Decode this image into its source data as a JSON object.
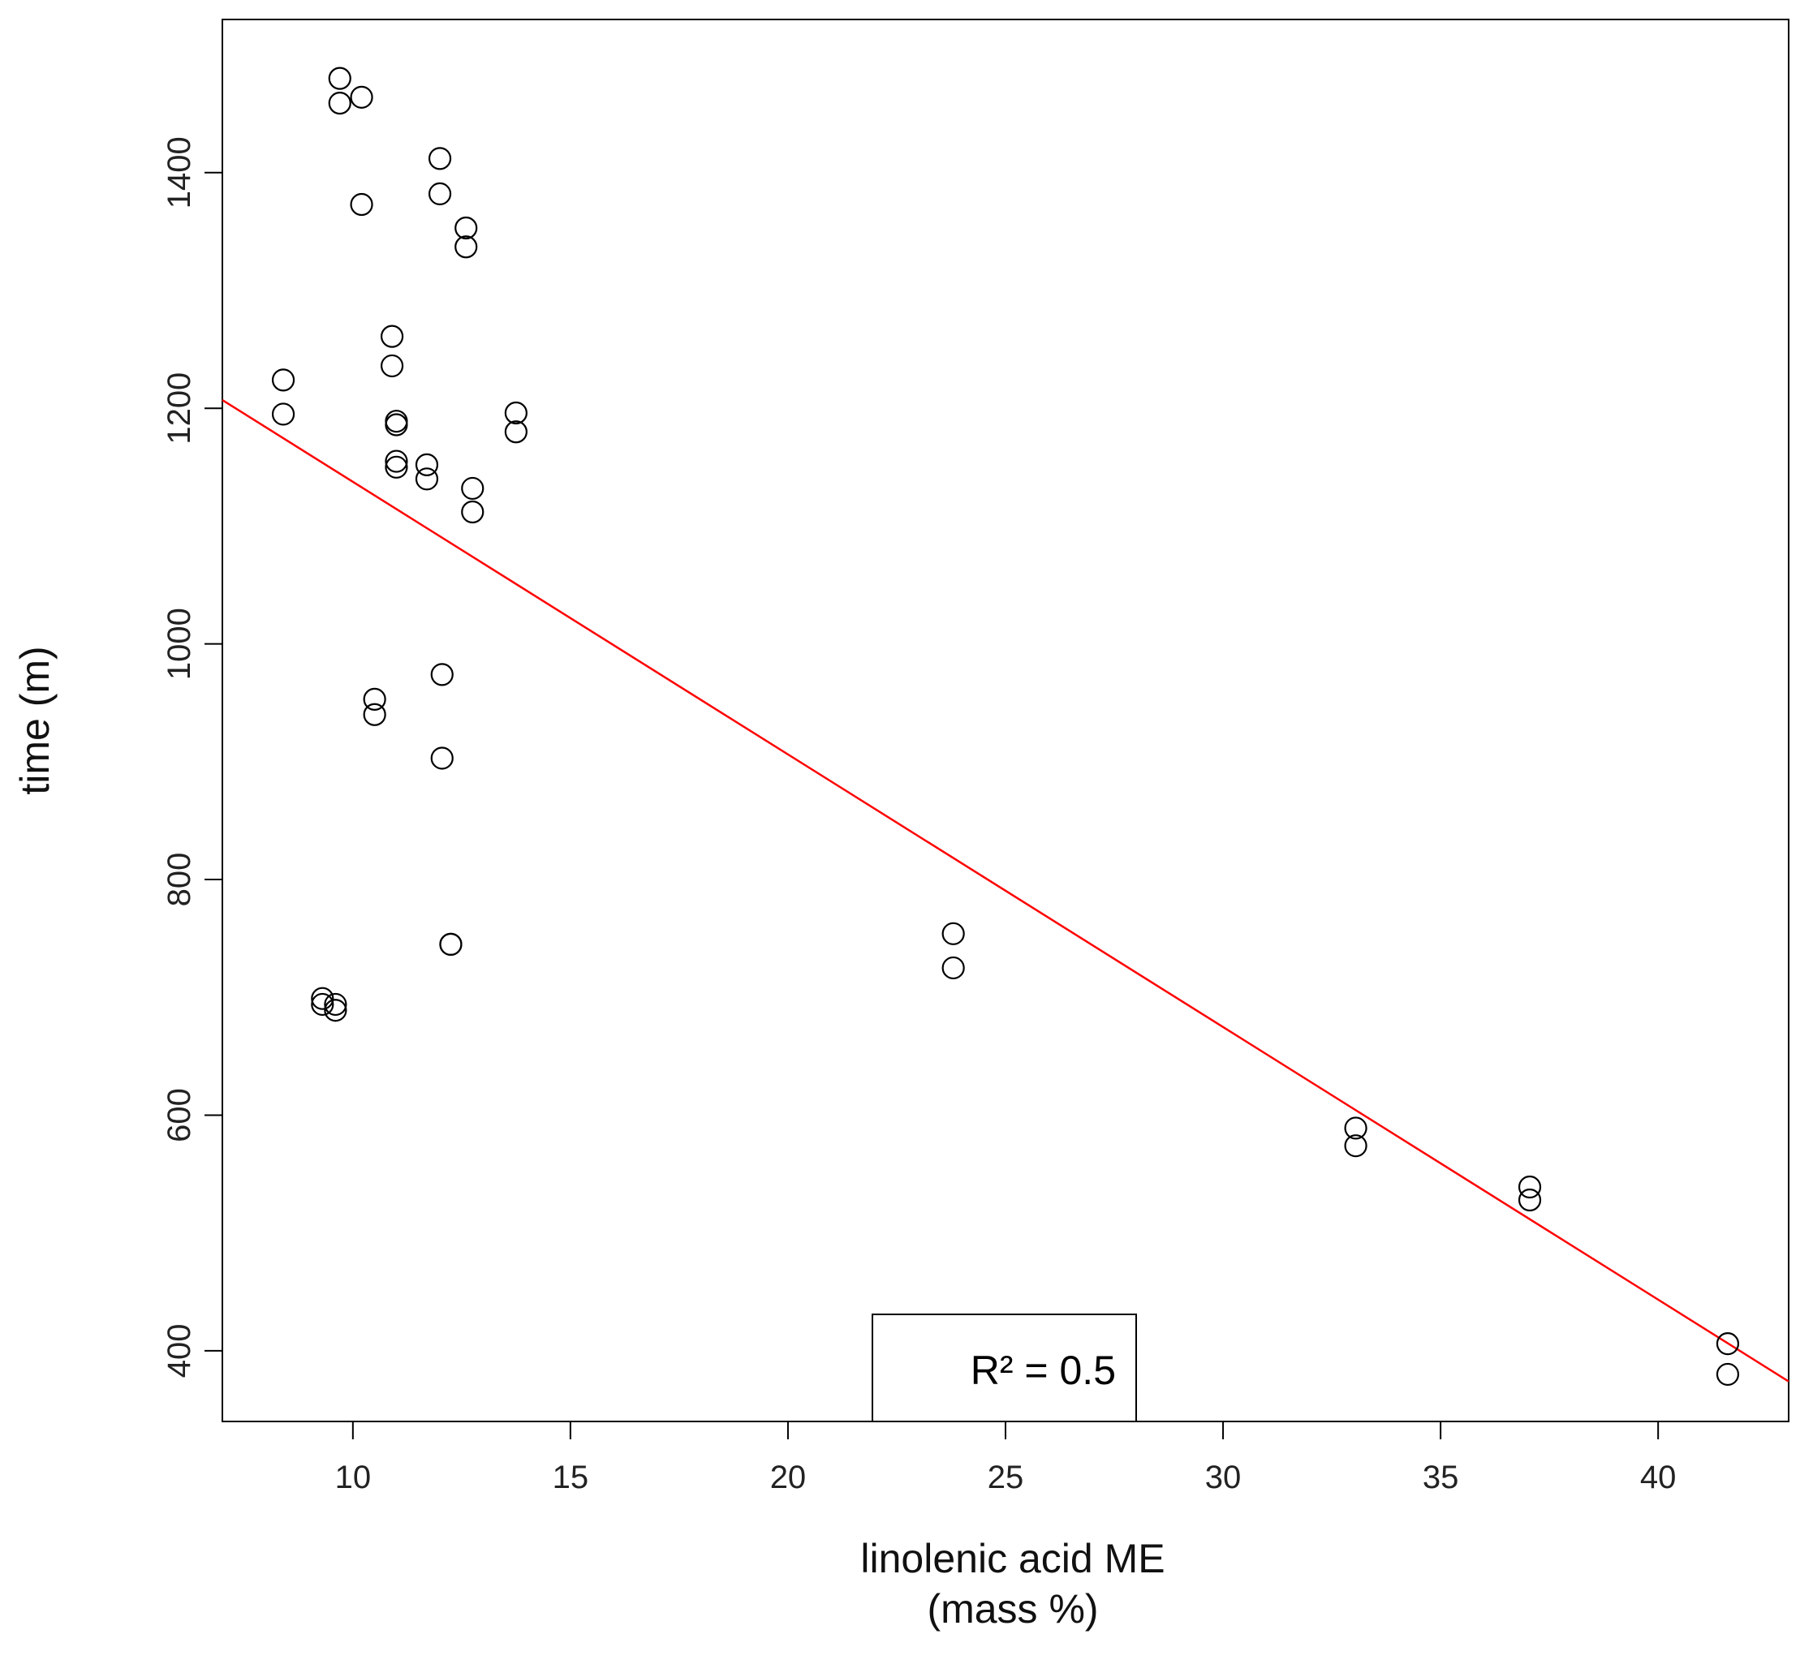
{
  "chart_data": {
    "type": "scatter",
    "title": "",
    "xlabel": "linolenic acid ME",
    "xlabel_line2": "(mass %)",
    "ylabel": "time (m)",
    "xlim": [
      7,
      43
    ],
    "ylim": [
      340,
      1530
    ],
    "xticks": [
      10,
      15,
      20,
      25,
      30,
      35,
      40
    ],
    "yticks": [
      400,
      600,
      800,
      1000,
      1200,
      1400
    ],
    "grid": false,
    "series": [
      {
        "name": "observations",
        "marker": "open-circle",
        "color": "#000000",
        "points": [
          {
            "x": 8.4,
            "y": 1224
          },
          {
            "x": 8.4,
            "y": 1195
          },
          {
            "x": 9.3,
            "y": 699
          },
          {
            "x": 9.3,
            "y": 694
          },
          {
            "x": 9.6,
            "y": 694
          },
          {
            "x": 9.6,
            "y": 689
          },
          {
            "x": 9.7,
            "y": 1480
          },
          {
            "x": 9.7,
            "y": 1459
          },
          {
            "x": 10.2,
            "y": 1464
          },
          {
            "x": 10.2,
            "y": 1373
          },
          {
            "x": 10.5,
            "y": 953
          },
          {
            "x": 10.5,
            "y": 940
          },
          {
            "x": 10.9,
            "y": 1261
          },
          {
            "x": 10.9,
            "y": 1236
          },
          {
            "x": 11.0,
            "y": 1189
          },
          {
            "x": 11.0,
            "y": 1186
          },
          {
            "x": 11.0,
            "y": 1155
          },
          {
            "x": 11.0,
            "y": 1150
          },
          {
            "x": 11.7,
            "y": 1152
          },
          {
            "x": 11.7,
            "y": 1140
          },
          {
            "x": 12.0,
            "y": 1412
          },
          {
            "x": 12.0,
            "y": 1382
          },
          {
            "x": 12.05,
            "y": 974
          },
          {
            "x": 12.05,
            "y": 903
          },
          {
            "x": 12.25,
            "y": 745
          },
          {
            "x": 12.25,
            "y": 745
          },
          {
            "x": 12.6,
            "y": 1353
          },
          {
            "x": 12.6,
            "y": 1337
          },
          {
            "x": 12.75,
            "y": 1132
          },
          {
            "x": 12.75,
            "y": 1112
          },
          {
            "x": 13.75,
            "y": 1196
          },
          {
            "x": 13.75,
            "y": 1180
          },
          {
            "x": 23.8,
            "y": 754
          },
          {
            "x": 23.8,
            "y": 725
          },
          {
            "x": 33.05,
            "y": 589
          },
          {
            "x": 33.05,
            "y": 574
          },
          {
            "x": 37.05,
            "y": 539
          },
          {
            "x": 37.05,
            "y": 528
          },
          {
            "x": 41.6,
            "y": 406
          },
          {
            "x": 41.6,
            "y": 380
          }
        ]
      }
    ],
    "fit_line": {
      "color": "#ff0000",
      "x": [
        7,
        43
      ],
      "y": [
        1207,
        374
      ]
    },
    "legend": {
      "label": "R² = 0.5",
      "placement": "bottom-center"
    }
  }
}
